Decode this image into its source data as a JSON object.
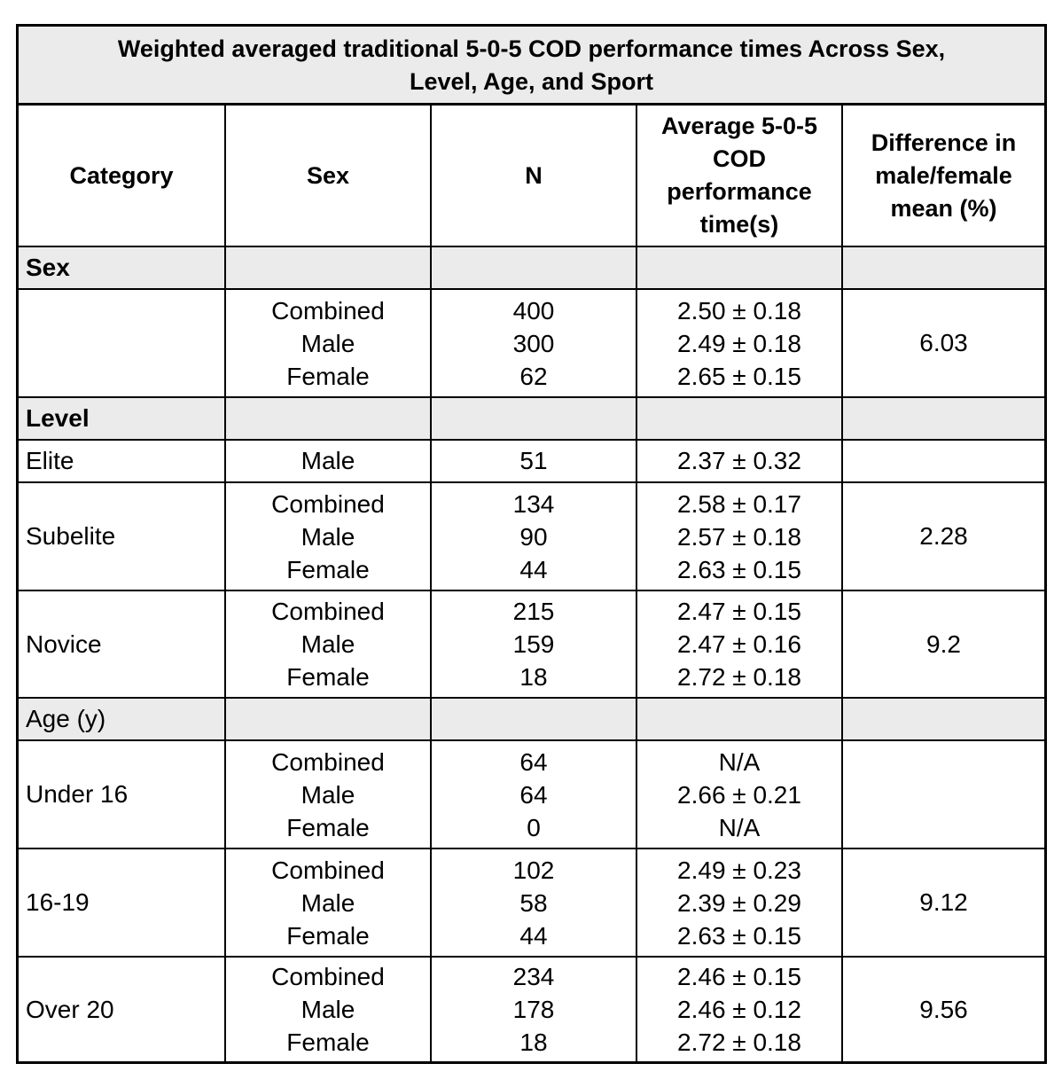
{
  "title": "Weighted averaged traditional 5-0-5 COD performance times Across Sex,\nLevel, Age, and Sport",
  "headers": {
    "category": "Category",
    "sex": "Sex",
    "n": "N",
    "avg": "Average 5-0-5\nCOD\nperformance\ntime(s)",
    "diff": "Difference in\nmale/female\nmean (%)"
  },
  "sections": [
    {
      "label": "Sex",
      "rows": [
        {
          "category": "",
          "sex": "Combined\nMale\nFemale",
          "n": "400\n300\n62",
          "avg": "2.50 ± 0.18\n2.49 ± 0.18\n2.65 ± 0.15",
          "diff": "6.03"
        }
      ]
    },
    {
      "label": "Level",
      "rows": [
        {
          "category": "Elite",
          "sex": "Male",
          "n": "51",
          "avg": "2.37 ± 0.32",
          "diff": ""
        },
        {
          "category": "Subelite",
          "sex": "Combined\nMale\nFemale",
          "n": "134\n90\n44",
          "avg": "2.58 ± 0.17\n2.57 ± 0.18\n2.63 ± 0.15",
          "diff": "2.28"
        },
        {
          "category": "Novice",
          "sex": "Combined\nMale\nFemale",
          "n": "215\n159\n18",
          "avg": "2.47 ± 0.15\n2.47 ± 0.16\n2.72 ± 0.18",
          "diff": "9.2"
        }
      ]
    },
    {
      "label": "Age (y)",
      "rows": [
        {
          "category": "Under 16",
          "sex": "Combined\nMale\nFemale",
          "n": "64\n64\n0",
          "avg": "N/A\n2.66 ± 0.21\nN/A",
          "diff": ""
        },
        {
          "category": "16-19",
          "sex": "Combined\nMale\nFemale",
          "n": "102\n58\n44",
          "avg": "2.49 ± 0.23\n2.39 ± 0.29\n2.63 ± 0.15",
          "diff": "9.12"
        },
        {
          "category": "Over 20",
          "sex": "Combined\nMale\nFemale",
          "n": "234\n178\n18",
          "avg": "2.46 ± 0.15\n2.46 ± 0.12\n2.72 ± 0.18",
          "diff": "9.56"
        }
      ]
    }
  ]
}
